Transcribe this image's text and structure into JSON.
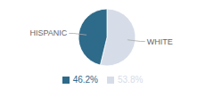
{
  "chart_data": {
    "type": "pie",
    "categories": [
      "WHITE",
      "HISPANIC"
    ],
    "values": [
      53.8,
      46.2
    ],
    "value_labels": [
      "53.8%",
      "46.2%"
    ],
    "colors": [
      "#d6dde8",
      "#2e6a8a"
    ],
    "legend": "bottom"
  }
}
